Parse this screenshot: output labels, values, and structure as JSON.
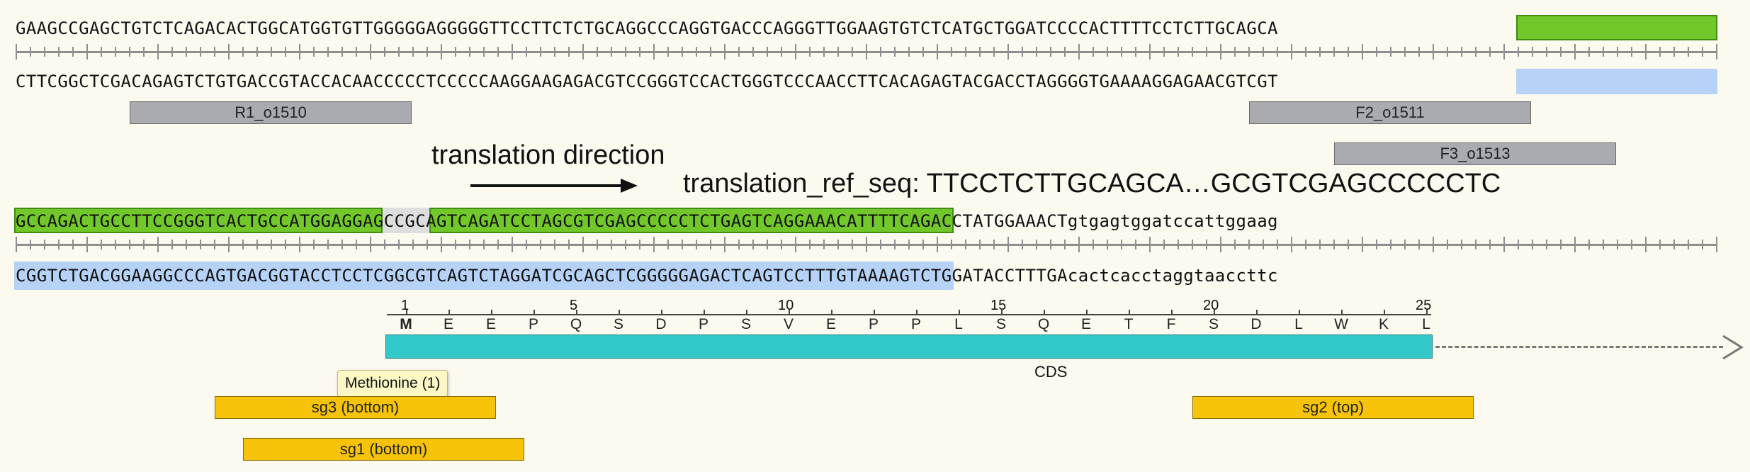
{
  "row1": {
    "top_strand": "GAAGCCGAGCTGTCTCAGACACTGGCATGGTGTTGGGGGAGGGGGTTCCTTCTCTGCAGGCCCAGGTGACCCAGGGTTGGAAGTGTCTCATGCTGGATCCCCACTTTTCCTCTTGCAGCA",
    "bottom_strand": "CTTCGGCTCGACAGAGTCTGTGACCGTACCACAACCCCCTCCCCCAAGGAAGAGACGTCCGGGTCCACTGGGTCCCAACCTTCACAGAGTACGACCTAGGGGTGAAAAGGAGAACGTCGT",
    "features": [
      {
        "name": "R1_o1510"
      },
      {
        "name": "F2_o1511"
      },
      {
        "name": "F3_o1513"
      }
    ]
  },
  "annotation": {
    "translation_direction": "translation direction",
    "ref_seq_label": "translation_ref_seq: TTCCTCTTGCAGCA…GCGTCGAGCCCCCTC"
  },
  "row2": {
    "top_strand": "GCCAGACTGCCTTCCGGGTCACTGCCATGGAGGAGCCGCAGTCAGATCCTAGCGTCGAGCCCCCTCTGAGTCAGGAAACATTTTCAGACCTATGGAAACTgtgagtggatccattggaag",
    "bottom_strand": "CGGTCTGACGGAAGGCCCAGTGACGGTACCTCCTCGGCGTCAGTCTAGGATCGCAGCTCGGGGGAGACTCAGTCCTTTGTAAAAGTCTGGATACCTTTGAcactcacctaggtaaccttc",
    "aa_numbers": [
      "1",
      "5",
      "10",
      "15",
      "20",
      "25"
    ],
    "amino_acids": [
      "M",
      "E",
      "E",
      "P",
      "Q",
      "S",
      "D",
      "P",
      "S",
      "V",
      "E",
      "P",
      "P",
      "L",
      "S",
      "Q",
      "E",
      "T",
      "F",
      "S",
      "D",
      "L",
      "W",
      "K",
      "L"
    ],
    "cds_label": "CDS",
    "tooltip": "Methionine (1)",
    "guides": [
      {
        "name": "sg3 (bottom)"
      },
      {
        "name": "sg1 (bottom)"
      },
      {
        "name": "sg2 (top)"
      }
    ]
  },
  "colors": {
    "primer_highlight": "#72c82a",
    "complement_highlight": "#b6d3f7",
    "primer_feature": "#a9abb1",
    "guide_feature": "#f6c309",
    "cds": "#33c8c9",
    "background": "#fcf9ef"
  }
}
